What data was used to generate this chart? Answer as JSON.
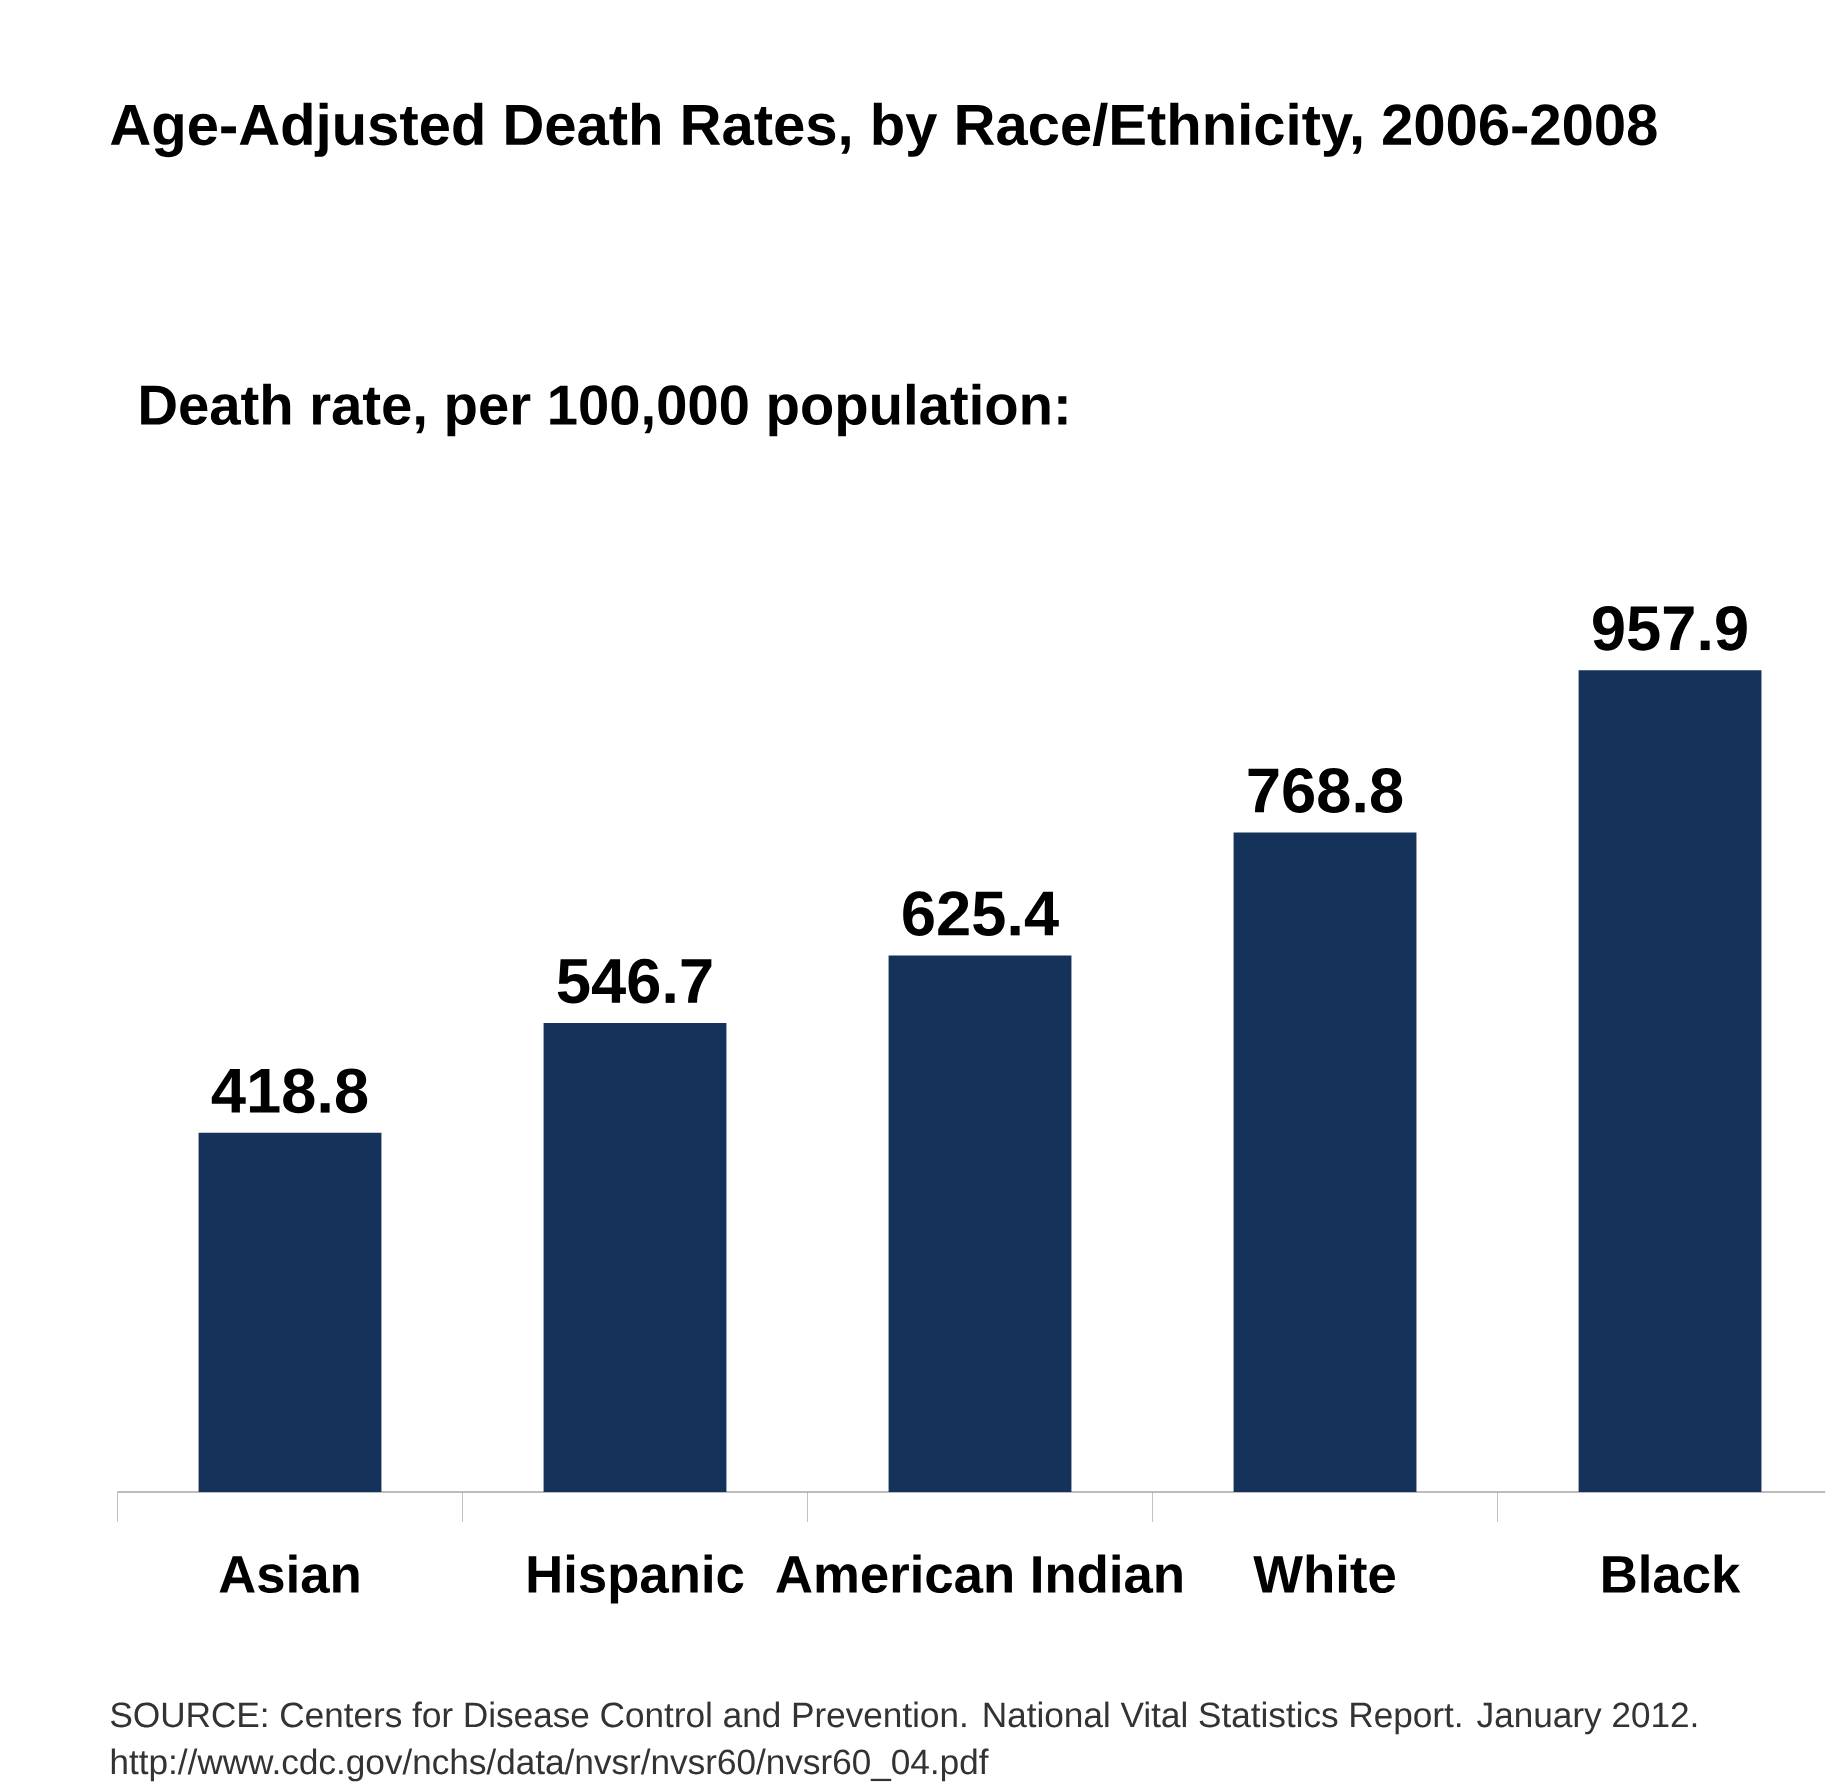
{
  "chart_data": {
    "type": "bar",
    "title": "Age-Adjusted Death Rates, by Race/Ethnicity, 2006-2008",
    "subtitle": "Death rate, per 100,000 population:",
    "categories": [
      "Asian",
      "Hispanic",
      "American Indian",
      "White",
      "Black"
    ],
    "values": [
      418.8,
      546.7,
      625.4,
      768.8,
      957.9
    ],
    "color": "#15325a",
    "data_labels": true,
    "annotations": [
      "SOURCE: Centers for Disease Control and Prevention. National Vital Statistics Report. January 2012.",
      "http://www.cdc.gov/nchs/data/nvsr/nvsr60/nvsr60_04.pdf"
    ]
  }
}
